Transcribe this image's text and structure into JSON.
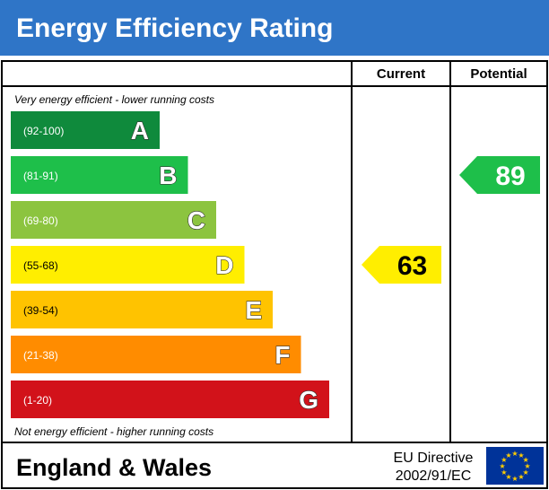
{
  "header": {
    "title": "Energy Efficiency Rating"
  },
  "columns": {
    "current": "Current",
    "potential": "Potential"
  },
  "chart_data": {
    "type": "bar",
    "top_note": "Very energy efficient - lower running costs",
    "bottom_note": "Not energy efficient - higher running costs",
    "bands": [
      {
        "letter": "A",
        "range": "(92-100)",
        "color": "#0f8a3c",
        "level": 1
      },
      {
        "letter": "B",
        "range": "(81-91)",
        "color": "#1ebf4a",
        "level": 2
      },
      {
        "letter": "C",
        "range": "(69-80)",
        "color": "#8cc43f",
        "level": 3
      },
      {
        "letter": "D",
        "range": "(55-68)",
        "color": "#ffee00",
        "level": 4
      },
      {
        "letter": "E",
        "range": "(39-54)",
        "color": "#ffc300",
        "level": 5
      },
      {
        "letter": "F",
        "range": "(21-38)",
        "color": "#ff8c00",
        "level": 6
      },
      {
        "letter": "G",
        "range": "(1-20)",
        "color": "#d2121a",
        "level": 7
      }
    ],
    "current": {
      "value": 63,
      "band": "D",
      "color": "#ffee00"
    },
    "potential": {
      "value": 89,
      "band": "B",
      "color": "#1ebf4a"
    }
  },
  "footer": {
    "region": "England & Wales",
    "directive_line1": "EU Directive",
    "directive_line2": "2002/91/EC",
    "flag_icon": "eu-flag-icon",
    "flag_color": "#003399",
    "star_color": "#ffcc00"
  },
  "colors": {
    "header_bg": "#2f75c7",
    "header_text": "#ffffff",
    "border": "#000000"
  }
}
